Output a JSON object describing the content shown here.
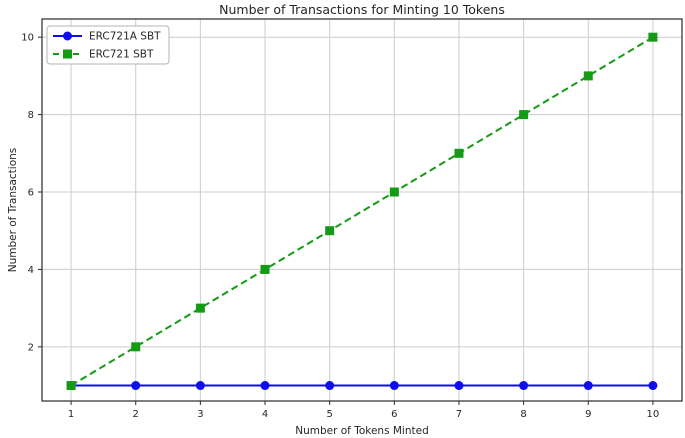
{
  "chart_data": {
    "type": "line",
    "title": "Number of Transactions for Minting 10 Tokens",
    "xlabel": "Number of Tokens Minted",
    "ylabel": "Number of Transactions",
    "x": [
      1,
      2,
      3,
      4,
      5,
      6,
      7,
      8,
      9,
      10
    ],
    "series": [
      {
        "name": "ERC721A SBT",
        "values": [
          1,
          1,
          1,
          1,
          1,
          1,
          1,
          1,
          1,
          1
        ],
        "color": "#0d0df0",
        "marker": "circle",
        "line_style": "solid"
      },
      {
        "name": "ERC721 SBT",
        "values": [
          1,
          2,
          3,
          4,
          5,
          6,
          7,
          8,
          9,
          10
        ],
        "color": "#149a14",
        "marker": "square",
        "line_style": "dashed"
      }
    ],
    "xticks": [
      1,
      2,
      3,
      4,
      5,
      6,
      7,
      8,
      9,
      10
    ],
    "yticks": [
      2,
      4,
      6,
      8,
      10
    ],
    "xlim": [
      0.55,
      10.45
    ],
    "ylim": [
      0.6,
      10.47
    ],
    "grid": true,
    "legend_position": "upper left",
    "grid_color": "#cccccc",
    "spine_color": "#2a2a2a",
    "text_color": "#262626",
    "legend_border_color": "#b5b5b5",
    "background_color": "#ffffff"
  }
}
